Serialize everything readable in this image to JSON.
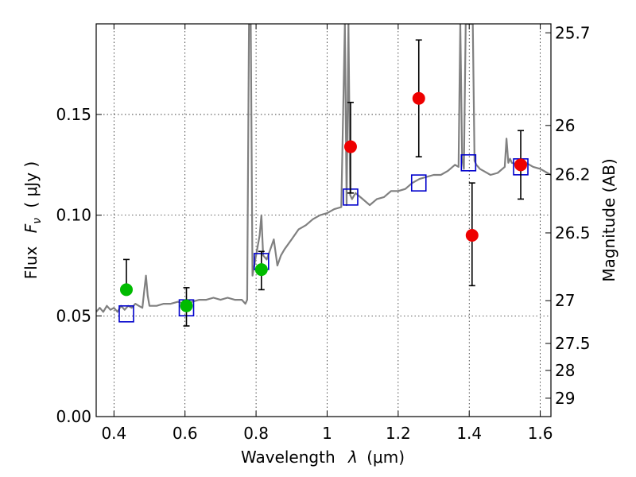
{
  "chart_data": {
    "type": "scatter",
    "title": "",
    "xlabel_text": "Wavelength",
    "xlabel_symbol": "λ",
    "xlabel_unit": "(μm)",
    "ylabel_text": "Flux",
    "ylabel_symbol": "F",
    "ylabel_subscript": "ν",
    "ylabel_unit": "( μJy )",
    "y2label": "Magnitude (AB)",
    "xlim": [
      0.35,
      1.63
    ],
    "ylim": [
      0.0,
      0.195
    ],
    "grid": true,
    "x_ticks": [
      0.4,
      0.6,
      0.8,
      1.0,
      1.2,
      1.4,
      1.6
    ],
    "x_tick_labels": [
      "0.4",
      "0.6",
      "0.8",
      "1",
      "1.2",
      "1.4",
      "1.6"
    ],
    "y_ticks": [
      0.0,
      0.05,
      0.1,
      0.15
    ],
    "y_tick_labels": [
      "0.00",
      "0.05",
      "0.10",
      "0.15"
    ],
    "mag_ticks": [
      25.7,
      26,
      26.2,
      26.5,
      27,
      27.5,
      28,
      29
    ],
    "mag_tick_labels": [
      "25.7",
      "26",
      "26.2",
      "26.5",
      "27",
      "27.5",
      "28",
      "29"
    ],
    "colors": {
      "spectrum": "#808080",
      "green_points": "#00bb00",
      "red_points": "#ee0000",
      "model_squares": "#0000cc",
      "errorbars": "#000000"
    },
    "series": [
      {
        "name": "model-spectrum",
        "kind": "line",
        "x": [
          0.35,
          0.36,
          0.37,
          0.38,
          0.39,
          0.4,
          0.41,
          0.42,
          0.43,
          0.44,
          0.45,
          0.46,
          0.47,
          0.48,
          0.485,
          0.49,
          0.495,
          0.5,
          0.52,
          0.54,
          0.56,
          0.58,
          0.6,
          0.62,
          0.64,
          0.66,
          0.68,
          0.7,
          0.72,
          0.74,
          0.76,
          0.77,
          0.775,
          0.78,
          0.785,
          0.79,
          0.8,
          0.81,
          0.815,
          0.82,
          0.83,
          0.84,
          0.85,
          0.86,
          0.87,
          0.88,
          0.9,
          0.92,
          0.94,
          0.96,
          0.98,
          1.0,
          1.02,
          1.04,
          1.05,
          1.055,
          1.06,
          1.065,
          1.07,
          1.08,
          1.1,
          1.12,
          1.14,
          1.16,
          1.18,
          1.2,
          1.22,
          1.24,
          1.26,
          1.28,
          1.3,
          1.32,
          1.34,
          1.36,
          1.37,
          1.375,
          1.38,
          1.385,
          1.39,
          1.4,
          1.41,
          1.415,
          1.42,
          1.43,
          1.44,
          1.46,
          1.48,
          1.5,
          1.505,
          1.51,
          1.515,
          1.52,
          1.54,
          1.56,
          1.58,
          1.6,
          1.62,
          1.63
        ],
        "y": [
          0.052,
          0.054,
          0.052,
          0.055,
          0.053,
          0.054,
          0.052,
          0.055,
          0.053,
          0.055,
          0.054,
          0.056,
          0.055,
          0.054,
          0.062,
          0.07,
          0.06,
          0.055,
          0.055,
          0.056,
          0.056,
          0.057,
          0.056,
          0.057,
          0.058,
          0.058,
          0.059,
          0.058,
          0.059,
          0.058,
          0.058,
          0.056,
          0.058,
          0.195,
          0.195,
          0.07,
          0.08,
          0.09,
          0.1,
          0.08,
          0.078,
          0.083,
          0.088,
          0.075,
          0.08,
          0.083,
          0.088,
          0.093,
          0.095,
          0.098,
          0.1,
          0.101,
          0.103,
          0.104,
          0.195,
          0.105,
          0.195,
          0.11,
          0.108,
          0.111,
          0.108,
          0.105,
          0.108,
          0.109,
          0.112,
          0.112,
          0.113,
          0.116,
          0.118,
          0.119,
          0.12,
          0.12,
          0.122,
          0.125,
          0.124,
          0.195,
          0.128,
          0.123,
          0.195,
          0.195,
          0.195,
          0.127,
          0.125,
          0.123,
          0.122,
          0.12,
          0.121,
          0.124,
          0.138,
          0.126,
          0.128,
          0.126,
          0.125,
          0.126,
          0.124,
          0.123,
          0.121,
          0.12
        ]
      },
      {
        "name": "photometry-green",
        "kind": "points",
        "x": [
          0.435,
          0.604,
          0.815
        ],
        "y": [
          0.063,
          0.055,
          0.073
        ],
        "yerr_low": [
          0.063,
          0.045,
          0.063
        ],
        "yerr_high": [
          0.078,
          0.064,
          0.082
        ]
      },
      {
        "name": "photometry-red",
        "kind": "points",
        "x": [
          1.066,
          1.258,
          1.408,
          1.545
        ],
        "y": [
          0.134,
          0.158,
          0.09,
          0.125
        ],
        "yerr_low": [
          0.111,
          0.129,
          0.065,
          0.108
        ],
        "yerr_high": [
          0.156,
          0.187,
          0.116,
          0.142
        ]
      },
      {
        "name": "model-photometry-squares",
        "kind": "squares",
        "x": [
          0.435,
          0.604,
          0.815,
          1.066,
          1.258,
          1.398,
          1.545
        ],
        "y": [
          0.051,
          0.054,
          0.077,
          0.109,
          0.116,
          0.126,
          0.124
        ]
      }
    ]
  }
}
